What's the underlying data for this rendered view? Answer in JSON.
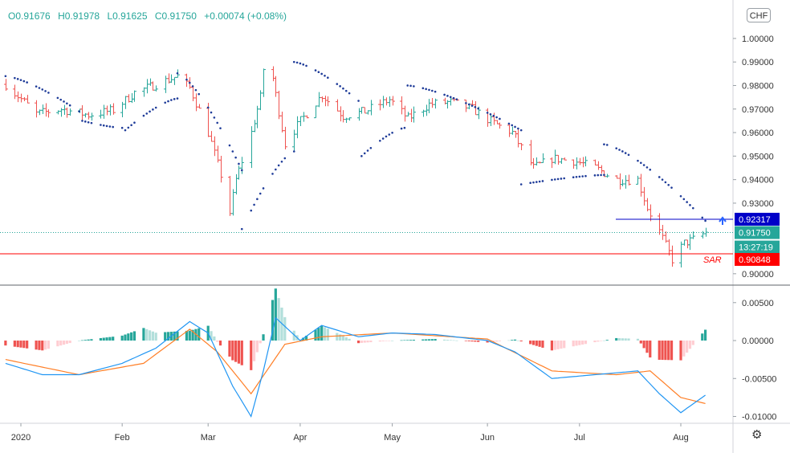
{
  "header": {
    "open": "O0.91676",
    "high": "H0.91978",
    "low": "L0.91625",
    "close": "C0.91750",
    "change": "+0.00074 (+0.08%)"
  },
  "currency_button": "CHF",
  "settings_icon": "gear-icon",
  "colors": {
    "up": "#26a69a",
    "down": "#ef5350",
    "sar": "#1f3c99",
    "macd": "#2196f3",
    "signal": "#ff7f27",
    "hist_up_strong": "#26a69a",
    "hist_up_weak": "#b2dfdb",
    "hist_down_strong": "#ef5350",
    "hist_down_weak": "#ffcdd2",
    "current_price": "#26a69a",
    "sar_marker": "#ff0000",
    "sar_label": "#0000c8"
  },
  "labels": {
    "sar_text": "SAR",
    "sar_marker_value": "0.90848",
    "sar_top_value": "0.92317",
    "current_price_value": "0.91750",
    "countdown": "13:27:19"
  },
  "chart_data": [
    {
      "type": "candlestick",
      "name": "price",
      "ylim": [
        0.8955,
        1.0143
      ],
      "yticks": [
        1.0,
        0.99,
        0.98,
        0.97,
        0.96,
        0.95,
        0.94,
        0.93,
        0.9
      ],
      "ytick_labels": [
        "1.00000",
        "0.99000",
        "0.98000",
        "0.97000",
        "0.96000",
        "0.95000",
        "0.94000",
        "0.93000",
        "0.90000"
      ],
      "x_months": [
        "2020",
        "Feb",
        "Mar",
        "Apr",
        "May",
        "Jun",
        "Jul",
        "Aug"
      ],
      "x_month_dates": [
        "2020-01-01",
        "2020-02-03",
        "2020-03-02",
        "2020-04-01",
        "2020-05-01",
        "2020-06-01",
        "2020-07-01",
        "2020-08-03"
      ],
      "price_anchors": [
        [
          "2019-12-27",
          0.9805
        ],
        [
          "2020-01-06",
          0.968
        ],
        [
          "2020-01-14",
          0.97
        ],
        [
          "2020-01-23",
          0.9675
        ],
        [
          "2020-01-31",
          0.9695
        ],
        [
          "2020-02-07",
          0.977
        ],
        [
          "2020-02-13",
          0.98
        ],
        [
          "2020-02-21",
          0.984
        ],
        [
          "2020-02-25",
          0.979
        ],
        [
          "2020-03-02",
          0.96
        ],
        [
          "2020-03-06",
          0.942
        ],
        [
          "2020-03-09",
          0.926
        ],
        [
          "2020-03-11",
          0.94
        ],
        [
          "2020-03-16",
          0.96
        ],
        [
          "2020-03-19",
          0.975
        ],
        [
          "2020-03-20",
          0.987
        ],
        [
          "2020-03-23",
          0.983
        ],
        [
          "2020-03-27",
          0.955
        ],
        [
          "2020-04-01",
          0.965
        ],
        [
          "2020-04-08",
          0.976
        ],
        [
          "2020-04-15",
          0.967
        ],
        [
          "2020-04-22",
          0.969
        ],
        [
          "2020-04-30",
          0.974
        ],
        [
          "2020-05-06",
          0.966
        ],
        [
          "2020-05-13",
          0.972
        ],
        [
          "2020-05-20",
          0.973
        ],
        [
          "2020-05-27",
          0.97
        ],
        [
          "2020-06-03",
          0.964
        ],
        [
          "2020-06-09",
          0.96
        ],
        [
          "2020-06-16",
          0.945
        ],
        [
          "2020-06-22",
          0.949
        ],
        [
          "2020-06-29",
          0.948
        ],
        [
          "2020-07-06",
          0.945
        ],
        [
          "2020-07-13",
          0.94
        ],
        [
          "2020-07-20",
          0.94
        ],
        [
          "2020-07-23",
          0.928
        ],
        [
          "2020-07-27",
          0.918
        ],
        [
          "2020-07-31",
          0.906
        ],
        [
          "2020-08-04",
          0.913
        ],
        [
          "2020-08-07",
          0.9145
        ],
        [
          "2020-08-11",
          0.9175
        ]
      ],
      "sar_segments": [
        {
          "direction": "above",
          "points": [
            [
              "2019-12-27",
              0.984
            ],
            [
              "2020-01-20",
              0.969
            ]
          ]
        },
        {
          "direction": "below",
          "points": [
            [
              "2020-01-21",
              0.965
            ],
            [
              "2020-02-03",
              0.962
            ]
          ]
        },
        {
          "direction": "below",
          "points": [
            [
              "2020-02-04",
              0.961
            ],
            [
              "2020-02-21",
              0.9745
            ]
          ]
        },
        {
          "direction": "above",
          "points": [
            [
              "2020-02-21",
              0.9852
            ],
            [
              "2020-03-13",
              0.944
            ]
          ]
        },
        {
          "direction": "below",
          "points": [
            [
              "2020-03-13",
              0.919
            ],
            [
              "2020-03-30",
              0.952
            ]
          ]
        },
        {
          "direction": "above",
          "points": [
            [
              "2020-03-30",
              0.99
            ],
            [
              "2020-04-20",
              0.9735
            ]
          ]
        },
        {
          "direction": "below",
          "points": [
            [
              "2020-04-21",
              0.95
            ],
            [
              "2020-05-05",
              0.962
            ]
          ]
        },
        {
          "direction": "above",
          "points": [
            [
              "2020-05-06",
              0.98
            ],
            [
              "2020-06-12",
              0.961
            ]
          ]
        },
        {
          "direction": "below",
          "points": [
            [
              "2020-06-12",
              0.938
            ],
            [
              "2020-07-09",
              0.942
            ]
          ]
        },
        {
          "direction": "above",
          "points": [
            [
              "2020-07-09",
              0.955
            ],
            [
              "2020-08-11",
              0.9225
            ]
          ]
        }
      ],
      "current_price": 0.9175,
      "sar_top_line": 0.92317,
      "sar_marker_line": 0.90848
    },
    {
      "type": "macd",
      "name": "macd",
      "ylim": [
        -0.0109,
        0.0072
      ],
      "yticks": [
        0.005,
        0.0,
        -0.005,
        -0.01
      ],
      "ytick_labels": [
        "0.00500",
        "0.00000",
        "-0.00500",
        "-0.01000"
      ],
      "macd_anchors": [
        [
          "2019-12-27",
          -0.003
        ],
        [
          "2020-01-08",
          -0.0045
        ],
        [
          "2020-01-20",
          -0.0045
        ],
        [
          "2020-02-03",
          -0.003
        ],
        [
          "2020-02-14",
          -0.001
        ],
        [
          "2020-02-25",
          0.0025
        ],
        [
          "2020-03-02",
          0.001
        ],
        [
          "2020-03-10",
          -0.006
        ],
        [
          "2020-03-16",
          -0.01
        ],
        [
          "2020-03-20",
          -0.004
        ],
        [
          "2020-03-24",
          0.003
        ],
        [
          "2020-04-01",
          0.0
        ],
        [
          "2020-04-08",
          0.002
        ],
        [
          "2020-04-20",
          0.0005
        ],
        [
          "2020-05-01",
          0.001
        ],
        [
          "2020-05-15",
          0.0008
        ],
        [
          "2020-06-01",
          0.0
        ],
        [
          "2020-06-10",
          -0.0015
        ],
        [
          "2020-06-22",
          -0.005
        ],
        [
          "2020-07-06",
          -0.0045
        ],
        [
          "2020-07-20",
          -0.004
        ],
        [
          "2020-07-27",
          -0.007
        ],
        [
          "2020-08-03",
          -0.0095
        ],
        [
          "2020-08-11",
          -0.0072
        ]
      ],
      "signal_anchors": [
        [
          "2019-12-27",
          -0.0025
        ],
        [
          "2020-01-20",
          -0.0045
        ],
        [
          "2020-02-10",
          -0.003
        ],
        [
          "2020-02-25",
          0.0015
        ],
        [
          "2020-03-05",
          -0.0015
        ],
        [
          "2020-03-16",
          -0.007
        ],
        [
          "2020-03-27",
          -0.0005
        ],
        [
          "2020-04-08",
          0.0005
        ],
        [
          "2020-05-01",
          0.001
        ],
        [
          "2020-06-01",
          0.0002
        ],
        [
          "2020-06-22",
          -0.004
        ],
        [
          "2020-07-13",
          -0.0045
        ],
        [
          "2020-07-24",
          -0.004
        ],
        [
          "2020-08-03",
          -0.0075
        ],
        [
          "2020-08-11",
          -0.0083
        ]
      ]
    }
  ]
}
